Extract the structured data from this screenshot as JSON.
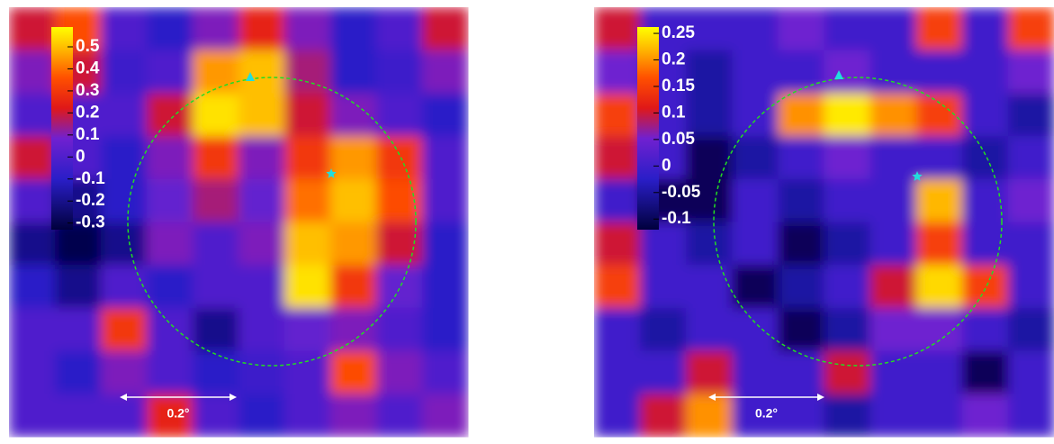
{
  "chart_data": [
    {
      "type": "heatmap",
      "values": [
        [
          0.2,
          0.35,
          0.0,
          -0.1,
          0.1,
          0.25,
          0.1,
          -0.1,
          0.0,
          0.2
        ],
        [
          0.1,
          0.2,
          -0.05,
          0.0,
          0.45,
          0.5,
          0.15,
          -0.1,
          -0.05,
          0.1
        ],
        [
          0.0,
          0.0,
          0.0,
          0.2,
          0.55,
          0.5,
          0.2,
          0.1,
          0.0,
          -0.1
        ],
        [
          0.2,
          0.0,
          -0.1,
          0.1,
          0.3,
          0.1,
          0.3,
          0.45,
          0.3,
          0.0
        ],
        [
          0.0,
          -0.2,
          -0.1,
          0.05,
          0.15,
          0.05,
          0.4,
          0.5,
          0.35,
          0.0
        ],
        [
          -0.2,
          -0.3,
          -0.2,
          0.1,
          0.0,
          0.1,
          0.5,
          0.45,
          0.2,
          -0.1
        ],
        [
          -0.1,
          -0.2,
          0.0,
          -0.1,
          0.0,
          0.0,
          0.55,
          0.3,
          0.05,
          -0.1
        ],
        [
          0.0,
          0.0,
          0.3,
          0.0,
          -0.2,
          0.0,
          0.05,
          0.1,
          0.0,
          -0.1
        ],
        [
          0.0,
          -0.1,
          0.1,
          0.0,
          -0.1,
          -0.05,
          0.0,
          0.35,
          0.1,
          0.0
        ],
        [
          0.0,
          0.0,
          0.0,
          0.25,
          0.0,
          -0.1,
          0.0,
          0.1,
          0.0,
          0.1
        ]
      ],
      "clim": [
        -0.33,
        0.59
      ],
      "cticks": [
        0.5,
        0.4,
        0.3,
        0.2,
        0.1,
        0,
        -0.1,
        -0.2,
        -0.3
      ],
      "scale_label": "0.2°"
    },
    {
      "type": "heatmap",
      "values": [
        [
          0.1,
          0.0,
          0.0,
          0.0,
          0.05,
          0.0,
          0.0,
          0.15,
          0.0,
          0.15
        ],
        [
          0.05,
          0.0,
          -0.05,
          0.0,
          0.0,
          0.05,
          0.0,
          0.0,
          0.0,
          0.05
        ],
        [
          0.15,
          0.0,
          -0.05,
          0.0,
          0.2,
          0.25,
          0.2,
          0.15,
          0.0,
          -0.05
        ],
        [
          0.1,
          0.0,
          -0.1,
          -0.05,
          0.0,
          0.05,
          0.0,
          0.0,
          -0.05,
          0.0
        ],
        [
          0.0,
          -0.1,
          -0.1,
          0.0,
          -0.05,
          0.0,
          0.0,
          0.22,
          0.0,
          0.05
        ],
        [
          0.1,
          0.0,
          -0.05,
          0.0,
          -0.1,
          -0.05,
          0.0,
          0.15,
          0.0,
          0.0
        ],
        [
          0.15,
          0.0,
          0.0,
          -0.1,
          -0.05,
          0.0,
          0.1,
          0.24,
          0.15,
          0.0
        ],
        [
          0.0,
          -0.05,
          0.0,
          0.0,
          -0.1,
          -0.05,
          0.05,
          0.05,
          0.0,
          -0.05
        ],
        [
          0.0,
          0.0,
          0.1,
          0.0,
          0.0,
          0.1,
          0.0,
          0.0,
          -0.1,
          0.0
        ],
        [
          0.0,
          0.1,
          0.2,
          0.0,
          0.0,
          -0.05,
          0.0,
          0.0,
          0.05,
          0.0
        ]
      ],
      "clim": [
        -0.12,
        0.262
      ],
      "cticks": [
        0.25,
        0.2,
        0.15,
        0.1,
        0.05,
        0,
        -0.05,
        -0.1
      ],
      "scale_label": "0.2°"
    }
  ]
}
